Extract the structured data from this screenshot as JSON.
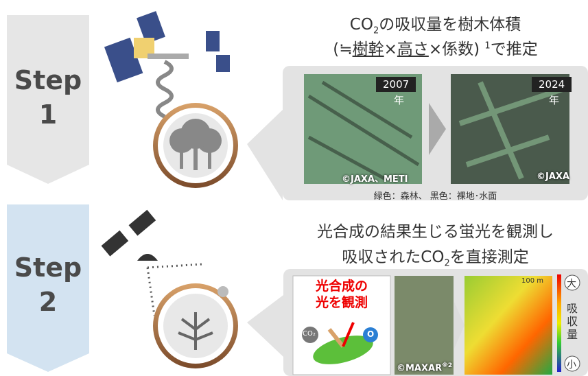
{
  "step1": {
    "label": "Step",
    "number": "1",
    "heading": {
      "line1": [
        "CO",
        "2",
        "の吸収量を樹木体積"
      ],
      "line2": [
        "(≒",
        "樹幹",
        "×",
        "高さ",
        "×係数)",
        "1",
        "で推定"
      ]
    },
    "images": [
      {
        "year": "2007",
        "unit": "年",
        "credit": "©JAXA、METI"
      },
      {
        "year": "2024",
        "unit": "年",
        "credit": "©JAXA"
      }
    ],
    "caption": "緑色：森林、 黒色：裸地･水面"
  },
  "step2": {
    "label": "Step",
    "number": "2",
    "heading": {
      "line1": "光合成の結果生じる蛍光を観測し",
      "line2": [
        "吸収されたCO",
        "2",
        "を直接測定"
      ]
    },
    "box": {
      "line1": "光合成の",
      "line2": "光を観測",
      "co2": "CO₂",
      "o": "O"
    },
    "credit": "©MAXAR",
    "credit_note": "※2",
    "scale": "100 m",
    "legend": {
      "high": "大",
      "label": "吸収量",
      "low": "小"
    }
  }
}
